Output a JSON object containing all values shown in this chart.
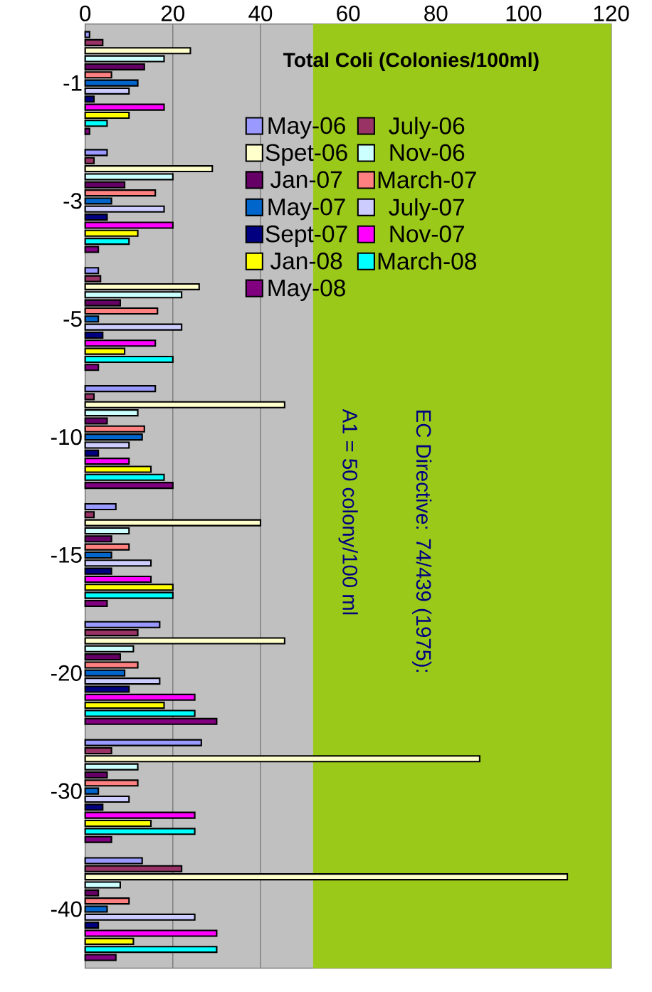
{
  "chart_data": {
    "type": "bar",
    "orientation": "horizontal",
    "title": "Total Coli (Colonies/100ml)",
    "categories": [
      "-1",
      "-3",
      "-5",
      "-10",
      "-15",
      "-20",
      "-30",
      "-40"
    ],
    "series": [
      {
        "name": "May-06",
        "color": "#9999ff",
        "values": [
          1,
          5,
          3,
          16,
          7,
          17,
          26.5,
          13
        ]
      },
      {
        "name": "July-06",
        "color": "#993366",
        "values": [
          4,
          2,
          3.5,
          2,
          2,
          12,
          6,
          22
        ]
      },
      {
        "name": "Spet-06",
        "color": "#ffffcc",
        "values": [
          24,
          29,
          26,
          45.5,
          40,
          45.5,
          90,
          110
        ]
      },
      {
        "name": "Nov-06",
        "color": "#ccffff",
        "values": [
          18,
          20,
          22,
          12,
          10,
          11,
          12,
          8
        ]
      },
      {
        "name": "Jan-07",
        "color": "#660066",
        "values": [
          13.5,
          9,
          8,
          5,
          6,
          8,
          5,
          3
        ]
      },
      {
        "name": "March-07",
        "color": "#ff8080",
        "values": [
          6,
          16,
          16.5,
          13.5,
          10,
          12,
          12,
          10
        ]
      },
      {
        "name": "May-07",
        "color": "#0066cc",
        "values": [
          12,
          6,
          3,
          13,
          6,
          9,
          3,
          5
        ]
      },
      {
        "name": "July-07",
        "color": "#ccccff",
        "values": [
          10,
          18,
          22,
          10,
          15,
          17,
          10,
          25
        ]
      },
      {
        "name": "Sept-07",
        "color": "#000080",
        "values": [
          2,
          5,
          4,
          3,
          6,
          10,
          4,
          3
        ]
      },
      {
        "name": "Nov-07",
        "color": "#ff00ff",
        "values": [
          18,
          20,
          16,
          10,
          15,
          25,
          25,
          30
        ]
      },
      {
        "name": "Jan-08",
        "color": "#ffff00",
        "values": [
          10,
          12,
          9,
          15,
          20,
          18,
          15,
          11
        ]
      },
      {
        "name": "March-08",
        "color": "#00ffff",
        "values": [
          5,
          10,
          20,
          18,
          20,
          25,
          25,
          30
        ]
      },
      {
        "name": "May-08",
        "color": "#800080",
        "values": [
          1,
          3,
          3,
          20,
          5,
          30,
          6,
          7
        ]
      }
    ],
    "xlim": [
      0,
      120
    ],
    "xticks": [
      0,
      20,
      40,
      60,
      80,
      100,
      120
    ],
    "bands": [
      {
        "axis": "x",
        "from": 52,
        "to": 120,
        "color": "#9bc91a"
      }
    ],
    "annotations": [
      "EC Directive: 74/439 (1975):",
      "A1 = 50 colony/100 ml"
    ],
    "grid": "x",
    "legend": "top"
  }
}
